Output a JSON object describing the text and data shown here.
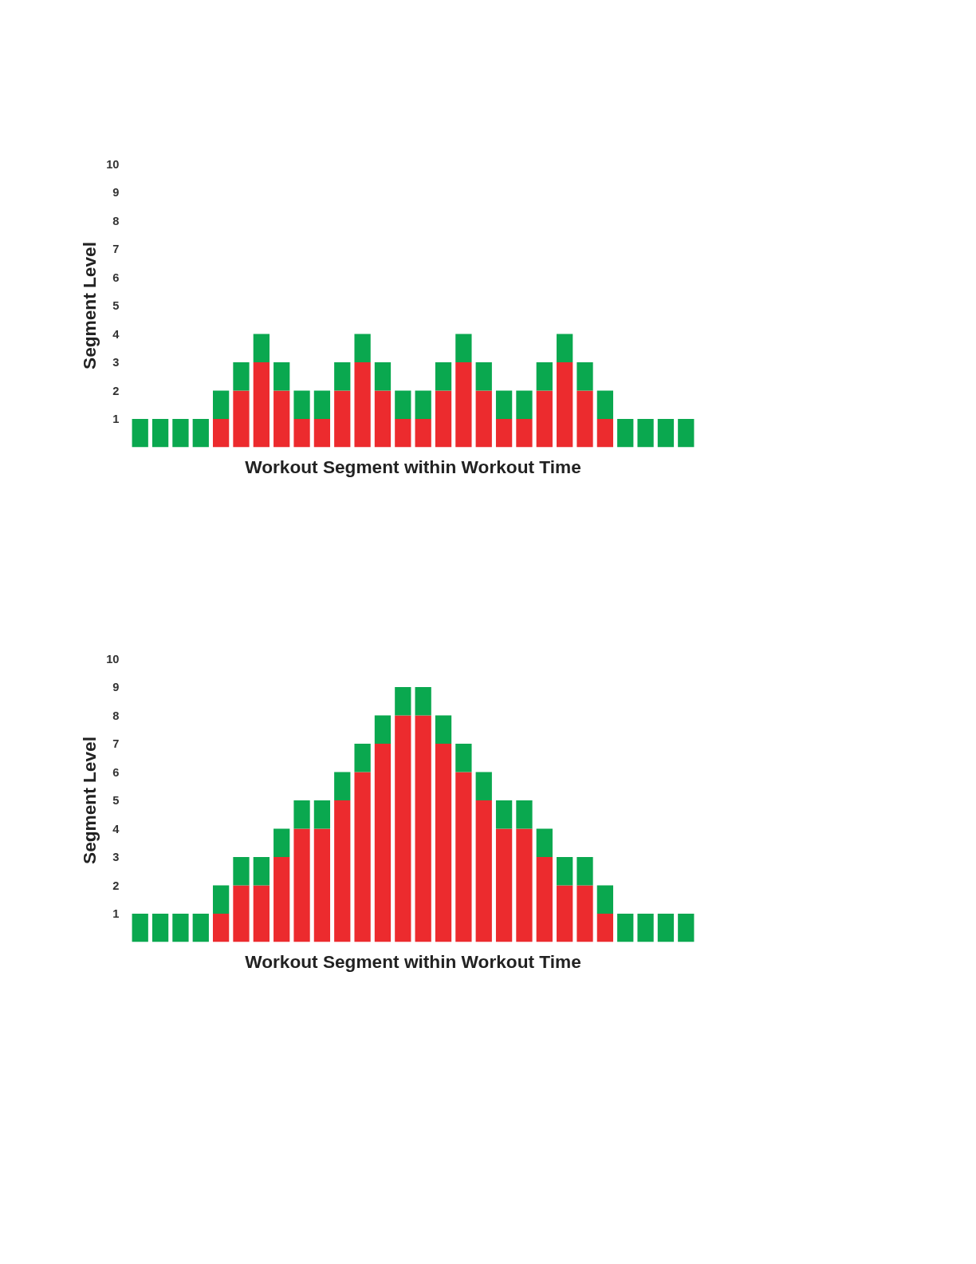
{
  "chart_data": [
    {
      "type": "bar",
      "stacked": true,
      "xlabel": "Workout Segment within Workout Time",
      "ylabel": "Segment Level",
      "categories": [
        null,
        null,
        null,
        null,
        null,
        null,
        null,
        null,
        null,
        null,
        null,
        null,
        null,
        null,
        null,
        null,
        null,
        null,
        null,
        null,
        null,
        null,
        null,
        null,
        null,
        null,
        null,
        null
      ],
      "series": [
        {
          "color": "#ec2b2e",
          "values": [
            0,
            0,
            0,
            0,
            1,
            2,
            3,
            2,
            1,
            1,
            2,
            3,
            2,
            1,
            1,
            2,
            3,
            2,
            1,
            1,
            2,
            3,
            2,
            1,
            0,
            0,
            0,
            0
          ]
        },
        {
          "color": "#0aa84f",
          "values": [
            1,
            1,
            1,
            1,
            1,
            1,
            1,
            1,
            1,
            1,
            1,
            1,
            1,
            1,
            1,
            1,
            1,
            1,
            1,
            1,
            1,
            1,
            1,
            1,
            1,
            1,
            1,
            1
          ]
        }
      ],
      "ylim": [
        0,
        10
      ],
      "yticks": [
        1,
        2,
        3,
        4,
        5,
        6,
        7,
        8,
        9,
        10
      ],
      "tick_labels": "y",
      "grid": false
    },
    {
      "type": "bar",
      "stacked": true,
      "xlabel": "Workout Segment within Workout Time",
      "ylabel": "Segment Level",
      "categories": [
        null,
        null,
        null,
        null,
        null,
        null,
        null,
        null,
        null,
        null,
        null,
        null,
        null,
        null,
        null,
        null,
        null,
        null,
        null,
        null,
        null,
        null,
        null,
        null,
        null,
        null,
        null,
        null
      ],
      "series": [
        {
          "color": "#ec2b2e",
          "values": [
            0,
            0,
            0,
            0,
            1,
            2,
            2,
            3,
            4,
            4,
            5,
            6,
            7,
            8,
            8,
            7,
            6,
            5,
            4,
            4,
            3,
            2,
            2,
            1,
            0,
            0,
            0,
            0
          ]
        },
        {
          "color": "#0aa84f",
          "values": [
            1,
            1,
            1,
            1,
            1,
            1,
            1,
            1,
            1,
            1,
            1,
            1,
            1,
            1,
            1,
            1,
            1,
            1,
            1,
            1,
            1,
            1,
            1,
            1,
            1,
            1,
            1,
            1
          ]
        }
      ],
      "ylim": [
        0,
        10
      ],
      "yticks": [
        1,
        2,
        3,
        4,
        5,
        6,
        7,
        8,
        9,
        10
      ],
      "tick_labels": "y",
      "grid": false
    }
  ]
}
